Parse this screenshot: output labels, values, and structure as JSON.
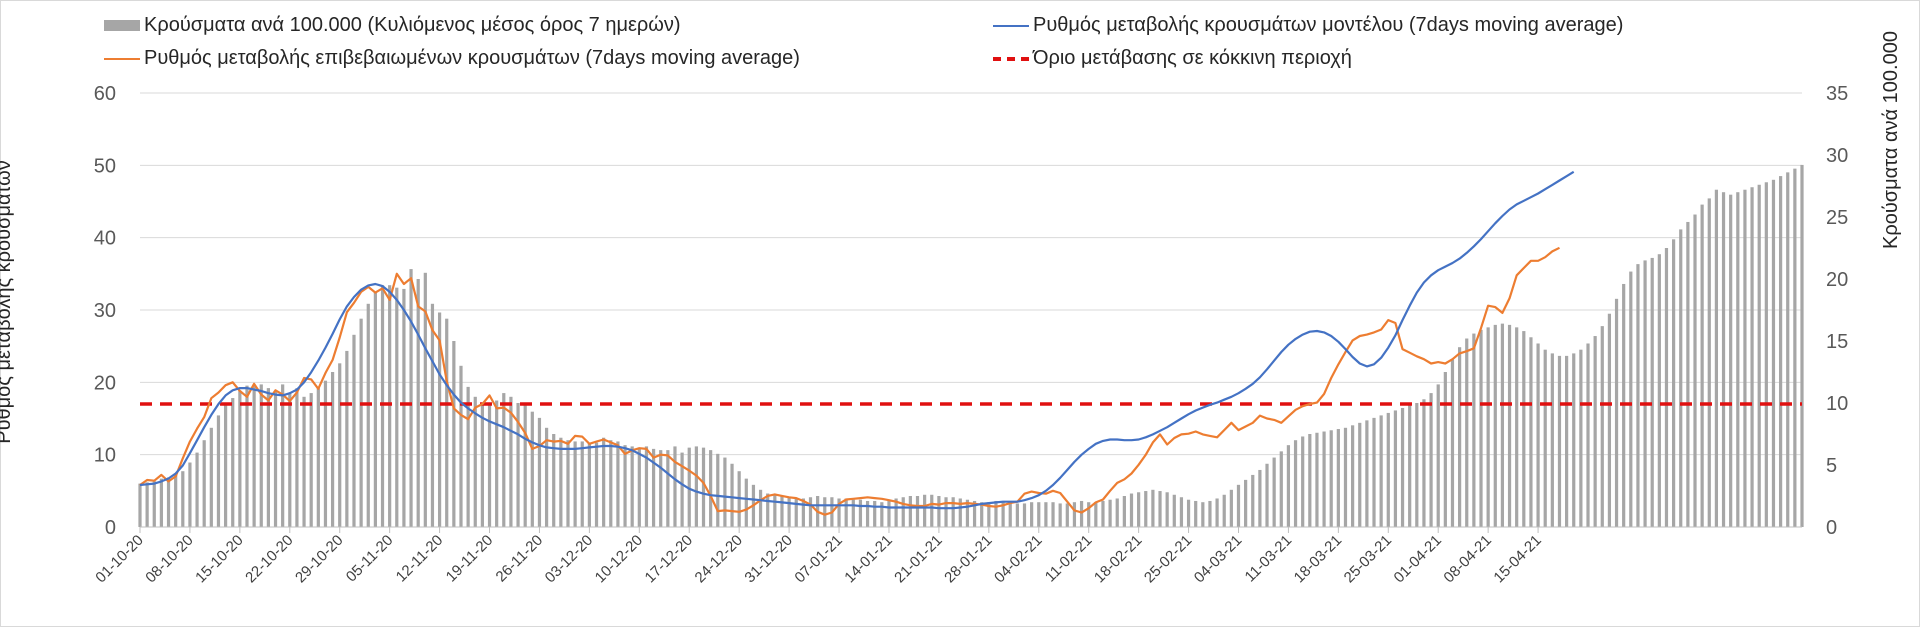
{
  "chart_data": {
    "type": "bar",
    "legend": {
      "bars_label": "Κρούσματα ανά 100.000 (Κυλιόμενος μέσος όρος 7 ημερών)",
      "model_label": "Ρυθμός μεταβολής κρουσμάτων μοντέλου (7days moving average)",
      "confirmed_label": "Ρυθμός μεταβολής επιβεβαιωμένων κρουσμάτων (7days moving average)",
      "threshold_label": "Όριο μετάβασης σε κόκκινη περιοχή"
    },
    "ylabel_left": "Ρυθμός μεταβολής κρουσμάτων",
    "ylabel_right": "Κρούσματα ανά 100.000",
    "ylim_left": [
      0,
      60
    ],
    "ylim_right": [
      0,
      35
    ],
    "yticks_left": [
      "0",
      "10",
      "20",
      "30",
      "40",
      "50",
      "60"
    ],
    "yticks_right": [
      "0",
      "5",
      "10",
      "15",
      "20",
      "25",
      "30",
      "35"
    ],
    "threshold": 17,
    "x_ticks": [
      "01-10-20",
      "08-10-20",
      "15-10-20",
      "22-10-20",
      "29-10-20",
      "05-11-20",
      "12-11-20",
      "19-11-20",
      "26-11-20",
      "03-12-20",
      "10-12-20",
      "17-12-20",
      "24-12-20",
      "31-12-20",
      "07-01-21",
      "14-01-21",
      "21-01-21",
      "28-01-21",
      "04-02-21",
      "11-02-21",
      "18-02-21",
      "25-02-21",
      "04-03-21",
      "11-03-21",
      "18-03-21",
      "25-03-21",
      "01-04-21",
      "08-04-21",
      "15-04-21"
    ],
    "series": [
      {
        "name": "Κρούσματα ανά 100.000 (Κυλιόμενος μέσος όρος 7 ημερών)",
        "axis": "right",
        "values": [
          3.5,
          3.6,
          3.7,
          3.9,
          4.0,
          4.2,
          4.5,
          5.2,
          6.0,
          7.0,
          8.0,
          9.0,
          9.8,
          10.4,
          11.0,
          11.4,
          11.5,
          11.5,
          11.2,
          11.0,
          11.5,
          10.8,
          11.2,
          10.5,
          10.8,
          11.2,
          11.8,
          12.5,
          13.2,
          14.2,
          15.5,
          16.8,
          18.0,
          19.0,
          19.5,
          19.5,
          19.3,
          19.2,
          20.8,
          20.0,
          20.5,
          18.0,
          17.3,
          16.8,
          15.0,
          13.0,
          11.3,
          10.5,
          10.0,
          9.8,
          10.2,
          10.8,
          10.5,
          10.0,
          9.8,
          9.3,
          8.8,
          8.0,
          7.5,
          7.2,
          7.0,
          6.9,
          6.9,
          6.8,
          6.8,
          7.2,
          7.0,
          6.9,
          6.6,
          6.5,
          6.4,
          6.5,
          6.3,
          6.2,
          6.2,
          6.5,
          6.0,
          6.4,
          6.5,
          6.4,
          6.2,
          5.9,
          5.6,
          5.1,
          4.5,
          3.9,
          3.4,
          3.0,
          2.7,
          2.6,
          2.5,
          2.4,
          2.3,
          2.3,
          2.4,
          2.5,
          2.4,
          2.4,
          2.3,
          2.3,
          2.2,
          2.2,
          2.1,
          2.1,
          2.0,
          2.1,
          2.3,
          2.4,
          2.5,
          2.5,
          2.6,
          2.6,
          2.5,
          2.4,
          2.4,
          2.3,
          2.2,
          2.1,
          2.0,
          2.0,
          2.1,
          2.1,
          2.0,
          1.9,
          1.9,
          2.0,
          2.0,
          2.0,
          2.0,
          1.9,
          1.9,
          2.0,
          2.1,
          2.0,
          2.0,
          2.1,
          2.2,
          2.3,
          2.5,
          2.7,
          2.8,
          2.9,
          3.0,
          2.9,
          2.8,
          2.6,
          2.4,
          2.2,
          2.1,
          2.0,
          2.1,
          2.3,
          2.6,
          3.0,
          3.4,
          3.8,
          4.2,
          4.6,
          5.1,
          5.6,
          6.1,
          6.6,
          7.0,
          7.3,
          7.5,
          7.6,
          7.7,
          7.8,
          7.9,
          8.0,
          8.2,
          8.4,
          8.6,
          8.8,
          9.0,
          9.2,
          9.4,
          9.6,
          9.8,
          10.0,
          10.3,
          10.8,
          11.5,
          12.5,
          13.5,
          14.5,
          15.2,
          15.6,
          15.9,
          16.1,
          16.3,
          16.4,
          16.3,
          16.1,
          15.8,
          15.3,
          14.8,
          14.3,
          14.0,
          13.8,
          13.8,
          14.0,
          14.3,
          14.8,
          15.4,
          16.2,
          17.2,
          18.4,
          19.6,
          20.6,
          21.2,
          21.5,
          21.7,
          22.0,
          22.5,
          23.2,
          24.0,
          24.6,
          25.2,
          26.0,
          26.5,
          27.2,
          27.0,
          26.8,
          27.0,
          27.2,
          27.4,
          27.6,
          27.8,
          28.0,
          28.3,
          28.6,
          28.9,
          29.2
        ]
      },
      {
        "name": "Ρυθμός μεταβολής κρουσμάτων μοντέλου (7days moving average)",
        "axis": "left",
        "values": [
          5.8,
          5.9,
          6.0,
          6.3,
          6.7,
          7.4,
          8.5,
          10.2,
          12.0,
          13.8,
          15.5,
          17.0,
          18.2,
          18.9,
          19.2,
          19.2,
          19.0,
          18.8,
          18.5,
          18.3,
          18.2,
          18.5,
          19.0,
          20.0,
          21.4,
          23.0,
          24.8,
          26.7,
          28.7,
          30.5,
          31.8,
          32.8,
          33.4,
          33.6,
          33.3,
          32.5,
          31.4,
          30.0,
          28.4,
          26.6,
          24.7,
          22.9,
          21.1,
          19.6,
          18.3,
          17.2,
          16.4,
          15.7,
          15.1,
          14.6,
          14.2,
          13.8,
          13.3,
          12.8,
          12.2,
          11.7,
          11.3,
          11.0,
          10.9,
          10.8,
          10.8,
          10.8,
          10.9,
          11.0,
          11.1,
          11.2,
          11.2,
          11.1,
          10.9,
          10.6,
          10.1,
          9.6,
          8.9,
          8.2,
          7.4,
          6.6,
          5.9,
          5.3,
          4.9,
          4.6,
          4.4,
          4.3,
          4.2,
          4.1,
          4.0,
          3.9,
          3.8,
          3.7,
          3.6,
          3.5,
          3.4,
          3.3,
          3.2,
          3.1,
          3.0,
          3.0,
          3.0,
          3.0,
          3.0,
          3.0,
          3.0,
          2.9,
          2.9,
          2.8,
          2.8,
          2.7,
          2.7,
          2.7,
          2.7,
          2.7,
          2.7,
          2.7,
          2.6,
          2.6,
          2.6,
          2.7,
          2.8,
          3.0,
          3.2,
          3.3,
          3.4,
          3.5,
          3.5,
          3.5,
          3.7,
          4.0,
          4.4,
          5.0,
          5.8,
          6.8,
          7.9,
          9.0,
          10.0,
          10.8,
          11.5,
          11.9,
          12.1,
          12.1,
          12.0,
          12.0,
          12.1,
          12.4,
          12.8,
          13.3,
          13.8,
          14.4,
          15.0,
          15.6,
          16.1,
          16.5,
          16.9,
          17.2,
          17.6,
          18.0,
          18.5,
          19.1,
          19.8,
          20.7,
          21.8,
          23.0,
          24.2,
          25.2,
          26.0,
          26.6,
          27.0,
          27.1,
          26.9,
          26.4,
          25.6,
          24.6,
          23.5,
          22.6,
          22.2,
          22.5,
          23.4,
          24.8,
          26.5,
          28.6,
          30.6,
          32.4,
          33.8,
          34.8,
          35.5,
          36.0,
          36.5,
          37.1,
          37.9,
          38.8,
          39.8,
          40.9,
          42.0,
          43.0,
          43.9,
          44.6,
          45.1,
          45.6,
          46.1,
          46.7,
          47.3,
          47.9,
          48.5,
          49.1
        ]
      },
      {
        "name": "Ρυθμός μεταβολής επιβεβαιωμένων κρουσμάτων (7days moving average)",
        "axis": "left",
        "values": [
          5.8,
          6.5,
          6.4,
          7.2,
          6.3,
          7.0,
          9.5,
          11.8,
          13.6,
          15.2,
          17.8,
          18.6,
          19.6,
          20.0,
          18.8,
          18.0,
          19.8,
          18.3,
          17.5,
          18.9,
          18.3,
          17.4,
          18.6,
          20.6,
          20.4,
          19.1,
          21.3,
          23.1,
          26.2,
          29.7,
          31.0,
          32.5,
          33.2,
          32.4,
          33.0,
          31.4,
          35.0,
          33.6,
          34.4,
          30.5,
          29.8,
          27.2,
          25.8,
          20.2,
          16.4,
          15.5,
          14.9,
          16.5,
          17.0,
          18.2,
          16.4,
          16.5,
          15.8,
          14.5,
          13.0,
          10.8,
          11.2,
          12.0,
          11.8,
          11.9,
          11.5,
          12.6,
          12.5,
          11.5,
          11.8,
          12.1,
          11.7,
          11.3,
          10.1,
          10.6,
          10.9,
          10.8,
          9.6,
          10.0,
          9.9,
          9.0,
          8.4,
          7.8,
          7.1,
          6.1,
          4.3,
          2.2,
          2.3,
          2.2,
          2.1,
          2.4,
          3.0,
          3.7,
          4.3,
          4.5,
          4.3,
          4.1,
          4.0,
          3.6,
          3.1,
          2.1,
          1.7,
          2.0,
          3.2,
          3.8,
          3.9,
          4.0,
          4.1,
          4.0,
          3.9,
          3.7,
          3.5,
          3.2,
          3.0,
          2.9,
          2.9,
          3.2,
          3.1,
          3.3,
          3.3,
          3.2,
          3.3,
          3.2,
          3.1,
          2.9,
          2.8,
          3.0,
          3.3,
          3.5,
          4.6,
          4.9,
          4.7,
          4.6,
          5.0,
          4.7,
          3.5,
          2.3,
          2.0,
          2.6,
          3.4,
          3.8,
          5.0,
          6.1,
          6.6,
          7.4,
          8.6,
          10.0,
          11.7,
          12.8,
          11.4,
          12.3,
          12.8,
          12.9,
          13.2,
          12.8,
          12.6,
          12.4,
          13.4,
          14.4,
          13.4,
          13.9,
          14.4,
          15.4,
          15.0,
          14.8,
          14.4,
          15.3,
          16.2,
          16.7,
          17.0,
          17.2,
          18.4,
          20.6,
          22.5,
          24.2,
          25.8,
          26.4,
          26.6,
          26.9,
          27.3,
          28.6,
          28.2,
          24.6,
          24.1,
          23.6,
          23.2,
          22.6,
          22.8,
          22.6,
          23.2,
          24.0,
          24.3,
          24.7,
          27.5,
          30.6,
          30.4,
          29.6,
          31.6,
          34.8,
          35.8,
          36.8,
          36.8,
          37.3,
          38.1,
          38.6
        ]
      }
    ]
  }
}
